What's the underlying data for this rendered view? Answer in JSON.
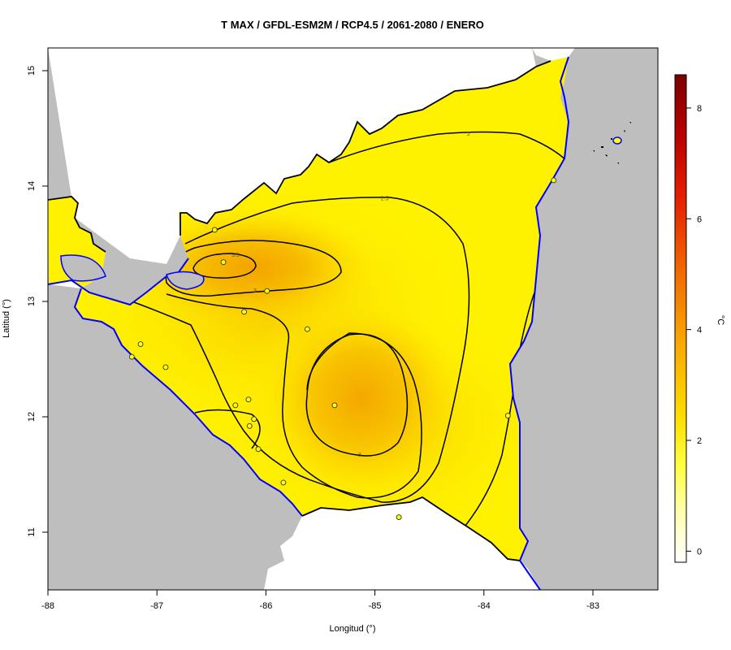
{
  "title": "T MAX / GFDL-ESM2M / RCP4.5 / 2061-2080 / ENERO",
  "x_axis": {
    "label": "Longitud (°)",
    "ticks": [
      {
        "v": -88,
        "label": "-88"
      },
      {
        "v": -87,
        "label": "-87"
      },
      {
        "v": -86,
        "label": "-86"
      },
      {
        "v": -85,
        "label": "-85"
      },
      {
        "v": -84,
        "label": "-84"
      },
      {
        "v": -83,
        "label": "-83"
      }
    ]
  },
  "y_axis": {
    "label": "Latitud (°)",
    "ticks": [
      {
        "v": 11,
        "label": "11"
      },
      {
        "v": 12,
        "label": "12"
      },
      {
        "v": 13,
        "label": "13"
      },
      {
        "v": 14,
        "label": "14"
      },
      {
        "v": 15,
        "label": "15"
      }
    ]
  },
  "colorbar": {
    "unit": "°C",
    "min": -0.2,
    "max": 8.6,
    "ticks": [
      {
        "v": 0,
        "label": "0"
      },
      {
        "v": 2,
        "label": "2"
      },
      {
        "v": 4,
        "label": "4"
      },
      {
        "v": 6,
        "label": "6"
      },
      {
        "v": 8,
        "label": "8"
      }
    ]
  },
  "contour_labels": [
    {
      "text": "2",
      "lon": -84.14,
      "lat": 14.45
    },
    {
      "text": "2.5",
      "lon": -84.91,
      "lat": 13.89
    },
    {
      "text": "3.5",
      "lon": -86.28,
      "lat": 13.4
    },
    {
      "text": "3",
      "lon": -86.1,
      "lat": 13.09
    },
    {
      "text": "3",
      "lon": -85.14,
      "lat": 11.67
    }
  ],
  "stations": [
    {
      "lon": -86.47,
      "lat": 13.62
    },
    {
      "lon": -86.39,
      "lat": 13.34
    },
    {
      "lon": -85.99,
      "lat": 13.09
    },
    {
      "lon": -86.2,
      "lat": 12.91
    },
    {
      "lon": -85.62,
      "lat": 12.76
    },
    {
      "lon": -87.15,
      "lat": 12.63
    },
    {
      "lon": -87.23,
      "lat": 12.52
    },
    {
      "lon": -86.92,
      "lat": 12.43
    },
    {
      "lon": -86.16,
      "lat": 12.15
    },
    {
      "lon": -86.28,
      "lat": 12.1
    },
    {
      "lon": -85.37,
      "lat": 12.1
    },
    {
      "lon": -86.11,
      "lat": 11.98
    },
    {
      "lon": -86.15,
      "lat": 11.92
    },
    {
      "lon": -86.07,
      "lat": 11.72
    },
    {
      "lon": -85.84,
      "lat": 11.43
    },
    {
      "lon": -84.78,
      "lat": 11.13
    },
    {
      "lon": -83.78,
      "lat": 12.01
    },
    {
      "lon": -83.36,
      "lat": 14.05
    }
  ]
}
